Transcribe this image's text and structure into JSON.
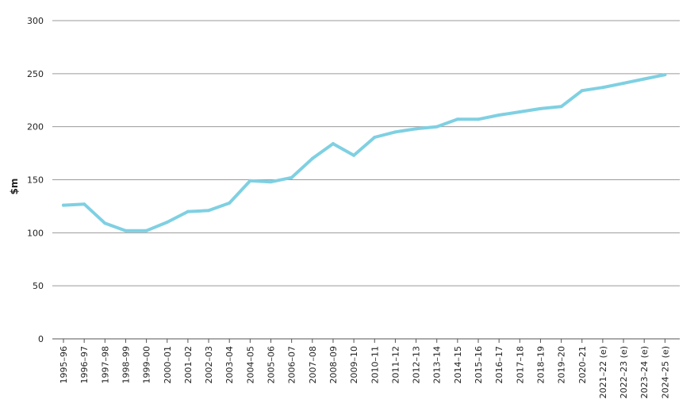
{
  "chart_data": {
    "type": "line",
    "ylabel": "$m",
    "ylim": [
      0,
      300
    ],
    "yticks": [
      0,
      50,
      100,
      150,
      200,
      250,
      300
    ],
    "grid": "horizontal",
    "legend": "none",
    "line_color": "#7fd0e2",
    "categories": [
      "1995–96",
      "1996–97",
      "1997–98",
      "1998–99",
      "1999–00",
      "2000–01",
      "2001–02",
      "2002–03",
      "2003–04",
      "2004–05",
      "2005–06",
      "2006–07",
      "2007–08",
      "2008–09",
      "2009–10",
      "2010–11",
      "2011–12",
      "2012–13",
      "2013–14",
      "2014–15",
      "2015–16",
      "2016–17",
      "2017–18",
      "2018–19",
      "2019–20",
      "2020–21",
      "2021–22 (e)",
      "2022–23 (e)",
      "2023–24 (e)",
      "2024–25 (e)"
    ],
    "series": [
      {
        "values": [
          126,
          127,
          109,
          102,
          102,
          110,
          120,
          121,
          128,
          149,
          148,
          152,
          170,
          184,
          173,
          190,
          195,
          198,
          200,
          207,
          207,
          211,
          214,
          217,
          219,
          234,
          237,
          241,
          245,
          249
        ]
      }
    ]
  }
}
